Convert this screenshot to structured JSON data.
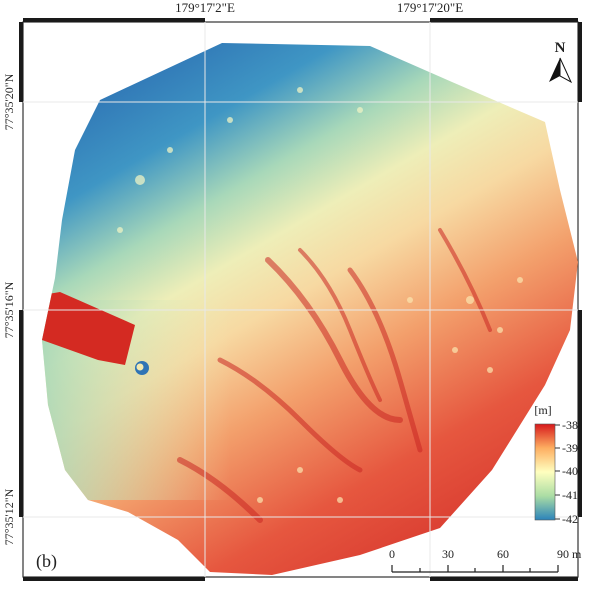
{
  "panel_label": "(b)",
  "north_arrow": {
    "label": "N",
    "icon": "north-arrow-icon"
  },
  "coordinates": {
    "top_labels": [
      "179°17'2\"E",
      "179°17'20\"E"
    ],
    "left_labels": [
      "77°35'20\"N",
      "77°35'16\"N",
      "77°35'12\"N"
    ]
  },
  "legend": {
    "unit": "[m]",
    "ticks": [
      "-38",
      "-39",
      "-40",
      "-41",
      "-42"
    ],
    "colors": [
      "#d7191c",
      "#fdae61",
      "#ffffbf",
      "#abdda4",
      "#2b83ba"
    ]
  },
  "scale_bar": {
    "ticks": [
      "0",
      "30",
      "60",
      "90 m"
    ]
  },
  "colors": {
    "frame": "#333333",
    "grid": "#e6e6e6",
    "glacier_block": "#d42a22"
  }
}
